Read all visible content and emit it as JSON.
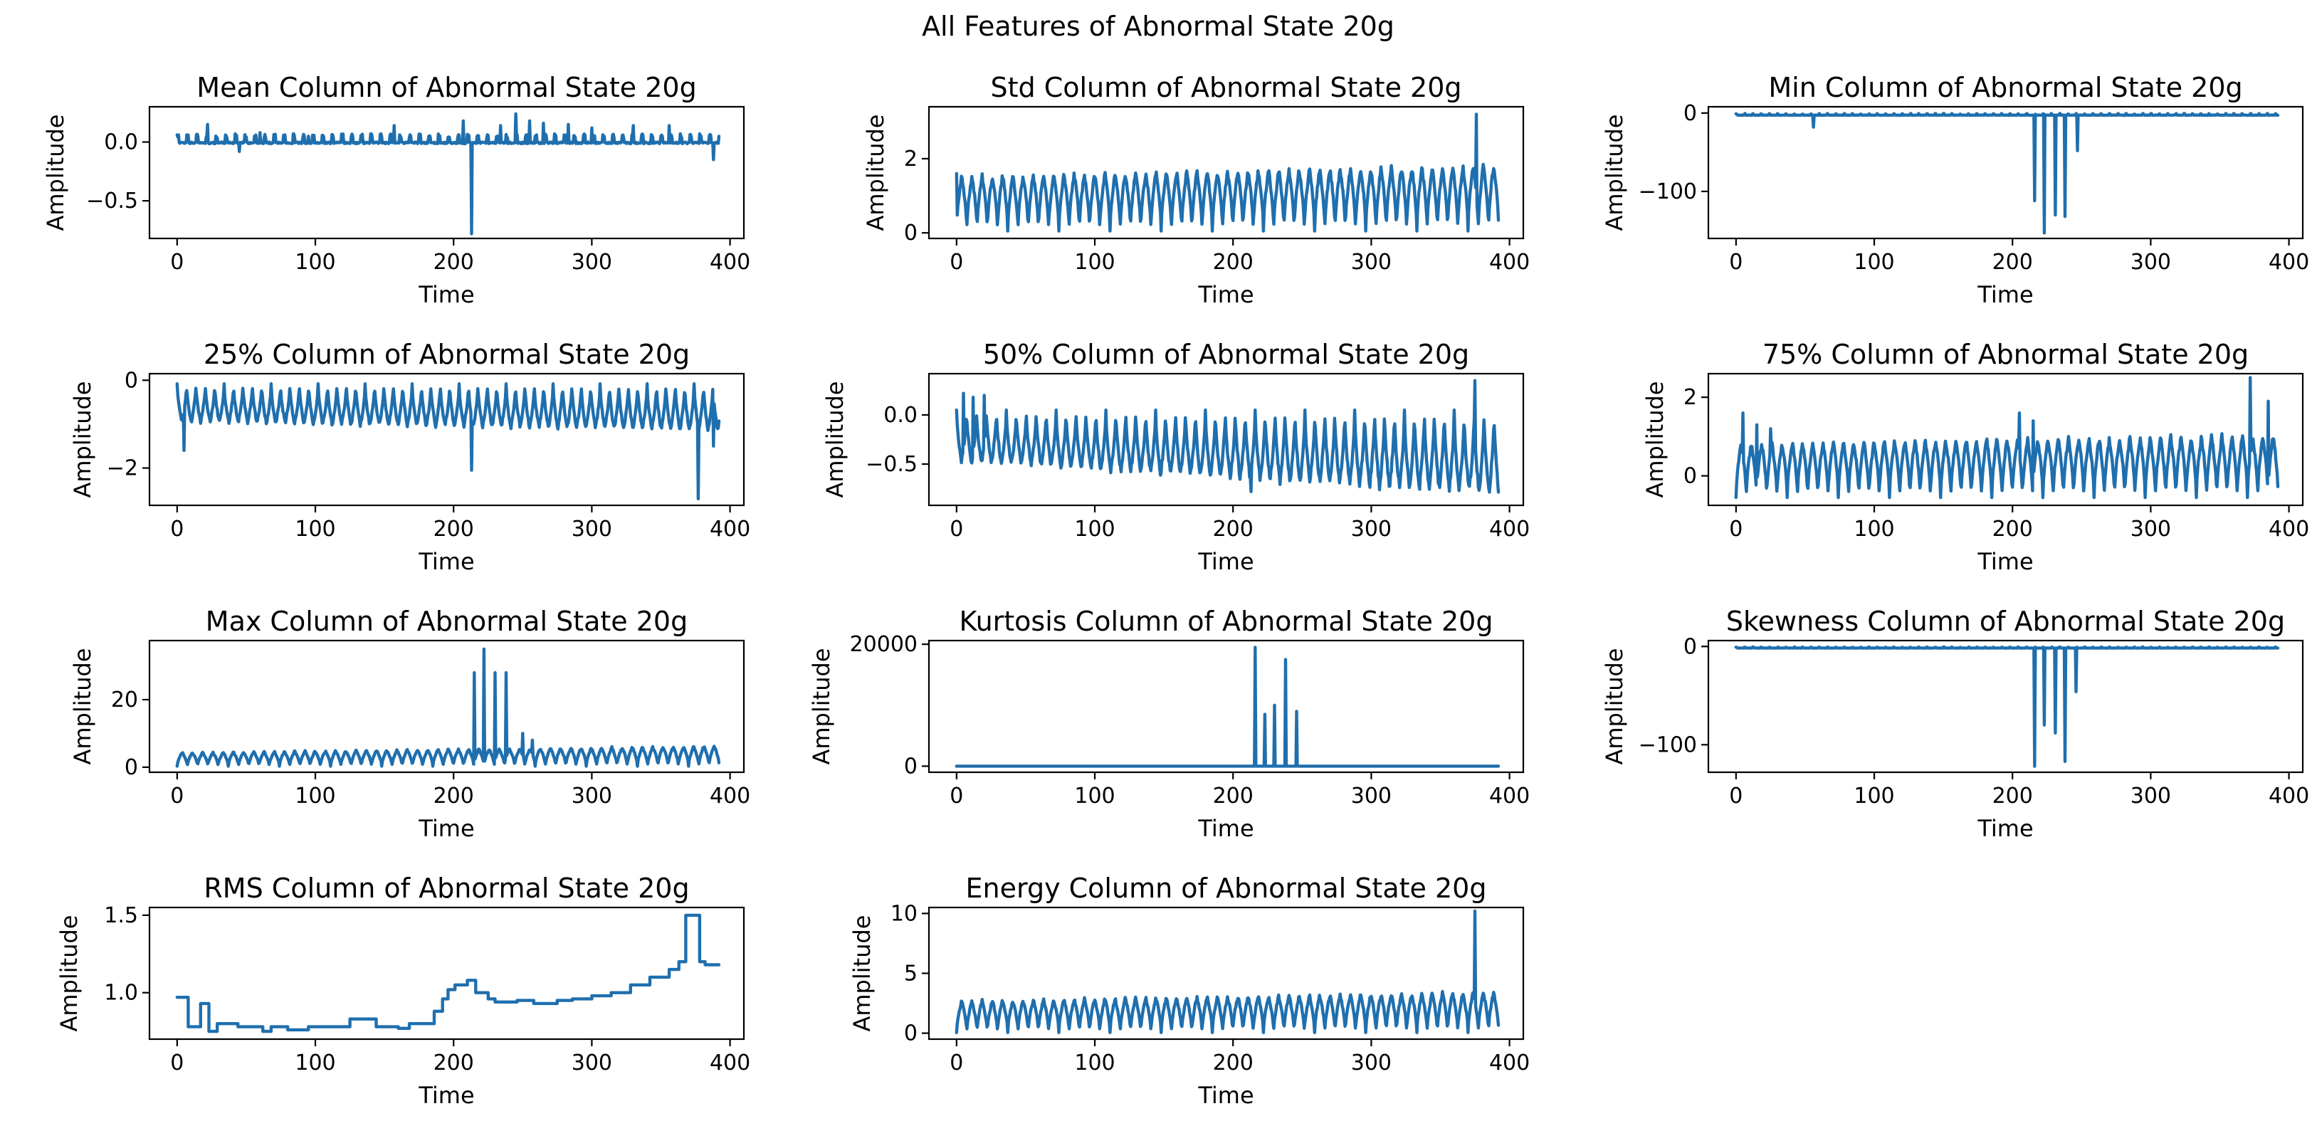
{
  "figure": {
    "title": "All Features of Abnormal State 20g",
    "line_color": "#1f6fae"
  },
  "chart_data": [
    {
      "type": "line",
      "title": "Mean Column of Abnormal State 20g",
      "xlabel": "Time",
      "ylabel": "Amplitude",
      "xlim": [
        -20,
        410
      ],
      "ylim": [
        -0.82,
        0.3
      ],
      "xticks": [
        0,
        100,
        200,
        300,
        400
      ],
      "yticks": [
        0.0,
        -0.5
      ],
      "yticklabels": [
        "0.0",
        "−0.5"
      ],
      "series": [
        {
          "name": "",
          "pattern": "spiky",
          "base": 0.0,
          "amplitude": 0.07,
          "period": 7,
          "spikes": [
            [
              22,
              0.15
            ],
            [
              35,
              0.06
            ],
            [
              45,
              -0.08
            ],
            [
              60,
              0.08
            ],
            [
              95,
              0.05
            ],
            [
              157,
              0.14
            ],
            [
              207,
              0.18
            ],
            [
              213,
              -0.78
            ],
            [
              234,
              0.14
            ],
            [
              245,
              0.24
            ],
            [
              255,
              0.18
            ],
            [
              265,
              0.16
            ],
            [
              283,
              0.15
            ],
            [
              300,
              0.12
            ],
            [
              330,
              0.14
            ],
            [
              356,
              0.14
            ],
            [
              388,
              -0.15
            ]
          ]
        }
      ]
    },
    {
      "type": "line",
      "title": "Std Column of Abnormal State 20g",
      "xlabel": "Time",
      "ylabel": "Amplitude",
      "xlim": [
        -20,
        410
      ],
      "ylim": [
        -0.15,
        3.4
      ],
      "xticks": [
        0,
        100,
        200,
        300,
        400
      ],
      "yticks": [
        0,
        2
      ],
      "yticklabels": [
        "0",
        "2"
      ],
      "series": [
        {
          "name": "",
          "pattern": "oscillation",
          "period": 7.4,
          "low": 0.05,
          "high_start": 1.6,
          "high_end": 1.9,
          "spikes": [
            [
              0,
              1.6
            ],
            [
              376,
              3.2
            ]
          ]
        }
      ]
    },
    {
      "type": "line",
      "title": "Min Column of Abnormal State 20g",
      "xlabel": "Time",
      "ylabel": "Amplitude",
      "xlim": [
        -20,
        410
      ],
      "ylim": [
        -160,
        8
      ],
      "xticks": [
        0,
        100,
        200,
        300,
        400
      ],
      "yticks": [
        0,
        -100
      ],
      "yticklabels": [
        "0",
        "−100"
      ],
      "series": [
        {
          "name": "",
          "pattern": "spiky",
          "base": -2.5,
          "amplitude": 2.0,
          "period": 6,
          "spikes": [
            [
              56,
              -18
            ],
            [
              216,
              -112
            ],
            [
              223,
              -153
            ],
            [
              231,
              -130
            ],
            [
              238,
              -132
            ],
            [
              247,
              -48
            ]
          ]
        }
      ]
    },
    {
      "type": "line",
      "title": "25% Column of Abnormal State 20g",
      "xlabel": "Time",
      "ylabel": "Amplitude",
      "xlim": [
        -20,
        410
      ],
      "ylim": [
        -2.85,
        0.15
      ],
      "xticks": [
        0,
        100,
        200,
        300,
        400
      ],
      "yticks": [
        0,
        -2
      ],
      "yticklabels": [
        "0",
        "−2"
      ],
      "series": [
        {
          "name": "",
          "pattern": "oscillation_down",
          "period": 6.8,
          "high": -0.08,
          "low_start": -1.0,
          "low_end": -1.2,
          "spikes": [
            [
              5,
              -1.6
            ],
            [
              213,
              -2.05
            ],
            [
              377,
              -2.7
            ],
            [
              388,
              -1.5
            ]
          ]
        }
      ]
    },
    {
      "type": "line",
      "title": "50% Column of Abnormal State 20g",
      "xlabel": "Time",
      "ylabel": "Amplitude",
      "xlim": [
        -20,
        410
      ],
      "ylim": [
        -0.92,
        0.42
      ],
      "xticks": [
        0,
        100,
        200,
        300,
        400
      ],
      "yticks": [
        0.0,
        -0.5
      ],
      "yticklabels": [
        "0.0",
        "−0.5"
      ],
      "series": [
        {
          "name": "",
          "pattern": "oscillation_down",
          "period": 7.2,
          "high": 0.05,
          "low_start": -0.5,
          "low_end": -0.85,
          "spikes": [
            [
              5,
              0.22
            ],
            [
              12,
              0.18
            ],
            [
              20,
              0.2
            ],
            [
              213,
              -0.78
            ],
            [
              375,
              0.35
            ]
          ]
        }
      ]
    },
    {
      "type": "line",
      "title": "75% Column of Abnormal State 20g",
      "xlabel": "Time",
      "ylabel": "Amplitude",
      "xlim": [
        -20,
        410
      ],
      "ylim": [
        -0.75,
        2.6
      ],
      "xticks": [
        0,
        100,
        200,
        300,
        400
      ],
      "yticks": [
        0,
        2
      ],
      "yticklabels": [
        "0",
        "2"
      ],
      "series": [
        {
          "name": "",
          "pattern": "oscillation",
          "period": 7.4,
          "low": -0.55,
          "high_start": 0.9,
          "high_end": 1.1,
          "spikes": [
            [
              5,
              1.6
            ],
            [
              15,
              1.3
            ],
            [
              25,
              1.2
            ],
            [
              205,
              1.6
            ],
            [
              215,
              1.4
            ],
            [
              372,
              2.5
            ],
            [
              385,
              1.9
            ]
          ]
        }
      ]
    },
    {
      "type": "line",
      "title": "Max Column of Abnormal State 20g",
      "xlabel": "Time",
      "ylabel": "Amplitude",
      "xlim": [
        -20,
        410
      ],
      "ylim": [
        -1.5,
        37.5
      ],
      "xticks": [
        0,
        100,
        200,
        300,
        400
      ],
      "yticks": [
        0,
        20
      ],
      "yticklabels": [
        "0",
        "20"
      ],
      "series": [
        {
          "name": "",
          "pattern": "oscillation",
          "period": 7.4,
          "low": 0.3,
          "high_start": 4.5,
          "high_end": 6.5,
          "spikes": [
            [
              215,
              28
            ],
            [
              222,
              35
            ],
            [
              230,
              28
            ],
            [
              238,
              28
            ],
            [
              250,
              10
            ],
            [
              257,
              8
            ]
          ]
        }
      ]
    },
    {
      "type": "line",
      "title": "Kurtosis Column of Abnormal State 20g",
      "xlabel": "Time",
      "ylabel": "Amplitude",
      "xlim": [
        -20,
        410
      ],
      "ylim": [
        -1000,
        20600
      ],
      "xticks": [
        0,
        100,
        200,
        300,
        400
      ],
      "yticks": [
        0,
        20000
      ],
      "yticklabels": [
        "0",
        "20000"
      ],
      "series": [
        {
          "name": "",
          "pattern": "flat",
          "base": 0,
          "spikes": [
            [
              216,
              19500
            ],
            [
              223,
              8500
            ],
            [
              230,
              10000
            ],
            [
              238,
              17500
            ],
            [
              246,
              9000
            ]
          ]
        }
      ]
    },
    {
      "type": "line",
      "title": "Skewness Column of Abnormal State 20g",
      "xlabel": "Time",
      "ylabel": "Amplitude",
      "xlim": [
        -20,
        410
      ],
      "ylim": [
        -128,
        6
      ],
      "xticks": [
        0,
        100,
        200,
        300,
        400
      ],
      "yticks": [
        0,
        -100
      ],
      "yticklabels": [
        "0",
        "−100"
      ],
      "series": [
        {
          "name": "",
          "pattern": "spiky",
          "base": -1.5,
          "amplitude": 1.0,
          "period": 6,
          "spikes": [
            [
              216,
              -122
            ],
            [
              223,
              -80
            ],
            [
              231,
              -88
            ],
            [
              238,
              -117
            ],
            [
              246,
              -46
            ]
          ]
        }
      ]
    },
    {
      "type": "line",
      "title": "RMS Column of Abnormal State 20g",
      "xlabel": "Time",
      "ylabel": "Amplitude",
      "xlim": [
        -20,
        410
      ],
      "ylim": [
        0.7,
        1.55
      ],
      "xticks": [
        0,
        100,
        200,
        300,
        400
      ],
      "yticks": [
        1.0,
        1.5
      ],
      "yticklabels": [
        "1.0",
        "1.5"
      ],
      "series": [
        {
          "name": "",
          "pattern": "steps",
          "x": [
            0,
            8,
            8,
            17,
            17,
            23,
            23,
            29,
            29,
            44,
            44,
            50,
            50,
            62,
            62,
            68,
            68,
            80,
            80,
            95,
            95,
            101,
            101,
            125,
            125,
            131,
            131,
            144,
            144,
            160,
            160,
            168,
            168,
            186,
            186,
            192,
            192,
            196,
            196,
            201,
            201,
            210,
            210,
            216,
            216,
            225,
            225,
            230,
            230,
            240,
            240,
            246,
            246,
            258,
            258,
            275,
            275,
            286,
            286,
            300,
            300,
            314,
            314,
            328,
            328,
            342,
            342,
            356,
            356,
            363,
            363,
            368,
            368,
            378,
            378,
            382,
            382,
            392
          ],
          "y": [
            0.97,
            0.97,
            0.78,
            0.78,
            0.93,
            0.93,
            0.75,
            0.75,
            0.8,
            0.8,
            0.78,
            0.78,
            0.78,
            0.78,
            0.75,
            0.75,
            0.78,
            0.78,
            0.76,
            0.76,
            0.78,
            0.78,
            0.78,
            0.78,
            0.83,
            0.83,
            0.83,
            0.83,
            0.78,
            0.78,
            0.77,
            0.77,
            0.8,
            0.8,
            0.88,
            0.88,
            0.96,
            0.96,
            1.02,
            1.02,
            1.05,
            1.05,
            1.08,
            1.08,
            1.0,
            1.0,
            0.96,
            0.96,
            0.94,
            0.94,
            0.94,
            0.94,
            0.95,
            0.95,
            0.93,
            0.93,
            0.95,
            0.95,
            0.96,
            0.96,
            0.98,
            0.98,
            1.0,
            1.0,
            1.05,
            1.05,
            1.1,
            1.1,
            1.15,
            1.15,
            1.2,
            1.2,
            1.5,
            1.5,
            1.2,
            1.2,
            1.18,
            1.18
          ]
        }
      ]
    },
    {
      "type": "line",
      "title": "Energy Column of Abnormal State 20g",
      "xlabel": "Time",
      "ylabel": "Amplitude",
      "xlim": [
        -20,
        410
      ],
      "ylim": [
        -0.5,
        10.5
      ],
      "xticks": [
        0,
        100,
        200,
        300,
        400
      ],
      "yticks": [
        0,
        5,
        10
      ],
      "yticklabels": [
        "0",
        "5",
        "10"
      ],
      "series": [
        {
          "name": "",
          "pattern": "oscillation",
          "period": 7.4,
          "low": 0.05,
          "high_start": 2.8,
          "high_end": 3.6,
          "spikes": [
            [
              375,
              10.2
            ]
          ]
        }
      ]
    }
  ]
}
